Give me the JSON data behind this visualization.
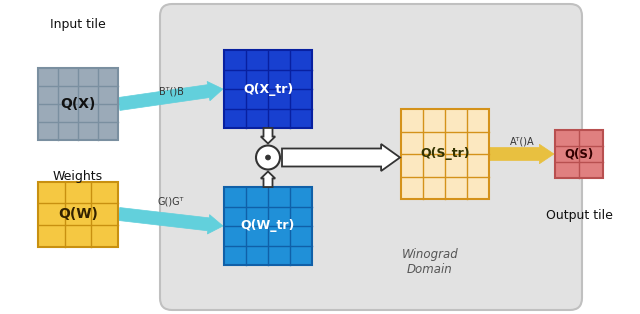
{
  "input_tile_label": "Input tile",
  "weights_label": "Weights",
  "output_tile_label": "Output tile",
  "winograd_label": "Winograd\nDomain",
  "qx_label": "Q(X)",
  "qw_label": "Q(W)",
  "qxtr_label": "Q(X_tr)",
  "qwtr_label": "Q(W_tr)",
  "qstr_label": "Q(S_tr)",
  "qs_label": "Q(S)",
  "arrow_bTb": "Bᵀ()B",
  "arrow_ggt": "G()Gᵀ",
  "arrow_aTa": "Aᵀ()A",
  "col_gray_face": "#9baab8",
  "col_gray_edge": "#7a8fa0",
  "col_blue_dark_face": "#1840d0",
  "col_blue_dark_edge": "#0820a0",
  "col_blue_mid_face": "#2090d8",
  "col_blue_mid_edge": "#1060a8",
  "col_orange_face": "#f5c842",
  "col_orange_edge": "#c89010",
  "col_str_face": "#fce8c0",
  "col_str_edge": "#d4921a",
  "col_pink_face": "#e08080",
  "col_pink_edge": "#b85050",
  "col_cyan_arrow": "#62d0dc",
  "col_gold_arrow": "#e8c040",
  "col_outline_arrow": "#333333",
  "col_winograd_bg": "#e2e2e2",
  "col_winograd_edge": "#c0c0c0"
}
